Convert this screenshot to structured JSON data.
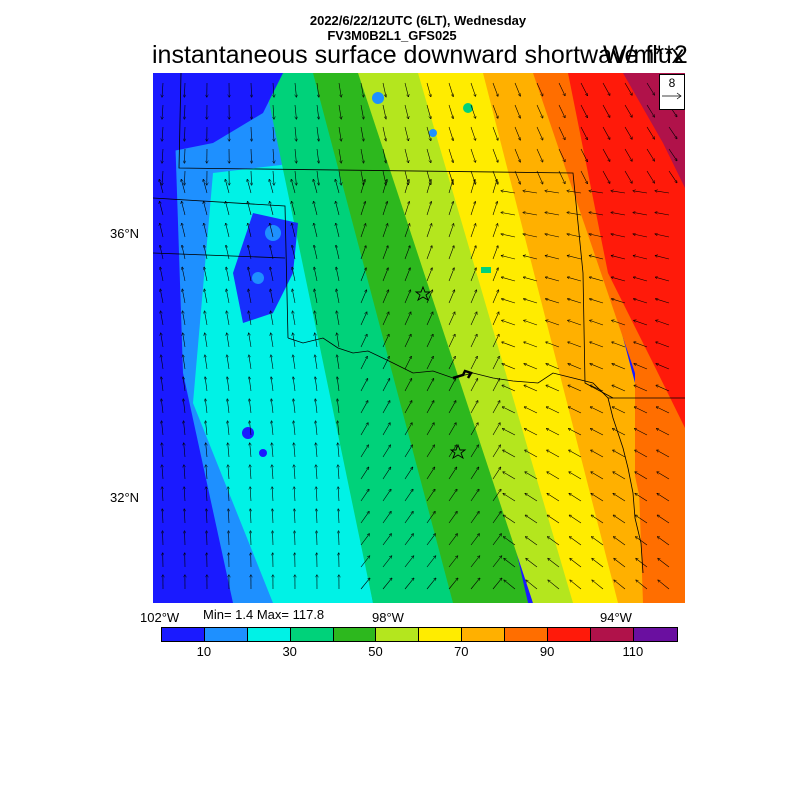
{
  "header": {
    "line1": "2022/6/22/12UTC (6LT), Wednesday",
    "line2": "FV3M0B2L1_GFS025",
    "title": "instantaneous surface downward shortwave flux",
    "units": "W/m**2"
  },
  "axes": {
    "lat_labels": [
      "36°N",
      "32°N"
    ],
    "lon_labels": [
      "102°W",
      "98°W",
      "94°W"
    ]
  },
  "stats": {
    "minmax": "Min= 1.4 Max= 117.8"
  },
  "vector_ref": {
    "value": "8"
  },
  "colorbar": {
    "colors": [
      "#1a1aff",
      "#1e90ff",
      "#00f2e6",
      "#00d27a",
      "#2db81e",
      "#b4e61e",
      "#ffec00",
      "#ffb000",
      "#ff6e00",
      "#ff1a0a",
      "#b0124a",
      "#6a0fa0"
    ],
    "labels": [
      "10",
      "30",
      "50",
      "70",
      "90",
      "110"
    ]
  },
  "map_colors": {
    "band_values": [
      10,
      20,
      30,
      40,
      50,
      60,
      70,
      80,
      90,
      100,
      110
    ]
  }
}
